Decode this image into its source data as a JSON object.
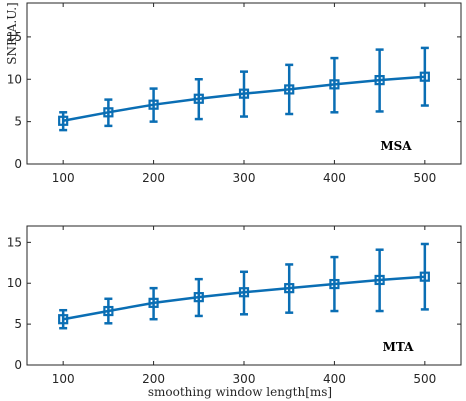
{
  "chart_data": [
    {
      "type": "line",
      "name": "MSA",
      "annotation": "MSA",
      "ylabel": "SNR[A.U.]",
      "xlabel": "",
      "xlim": [
        60,
        540
      ],
      "ylim": [
        0,
        19
      ],
      "xticks": [
        100,
        200,
        300,
        400,
        500
      ],
      "yticks": [
        0,
        5,
        10,
        15
      ],
      "grid": false,
      "marker": "square",
      "color": "#0a6eb4",
      "x": [
        100,
        150,
        200,
        250,
        300,
        350,
        400,
        450,
        500
      ],
      "y": [
        5.1,
        6.1,
        7.0,
        7.7,
        8.3,
        8.8,
        9.4,
        9.9,
        10.3
      ],
      "err_low": [
        4.0,
        4.5,
        5.0,
        5.3,
        5.6,
        5.9,
        6.1,
        6.2,
        6.9
      ],
      "err_high": [
        6.1,
        7.6,
        8.9,
        10.0,
        10.9,
        11.7,
        12.5,
        13.5,
        13.7
      ]
    },
    {
      "type": "line",
      "name": "MTA",
      "annotation": "MTA",
      "ylabel": "",
      "xlabel": "smoothing window length[ms]",
      "xlim": [
        60,
        540
      ],
      "ylim": [
        0,
        17
      ],
      "xticks": [
        100,
        200,
        300,
        400,
        500
      ],
      "yticks": [
        0,
        5,
        10,
        15
      ],
      "grid": false,
      "marker": "square",
      "color": "#0a6eb4",
      "x": [
        100,
        150,
        200,
        250,
        300,
        350,
        400,
        450,
        500
      ],
      "y": [
        5.6,
        6.6,
        7.6,
        8.3,
        8.9,
        9.4,
        9.9,
        10.4,
        10.8
      ],
      "err_low": [
        4.5,
        5.1,
        5.6,
        6.0,
        6.2,
        6.4,
        6.6,
        6.6,
        6.8
      ],
      "err_high": [
        6.7,
        8.1,
        9.4,
        10.5,
        11.4,
        12.3,
        13.2,
        14.1,
        14.8
      ]
    }
  ]
}
